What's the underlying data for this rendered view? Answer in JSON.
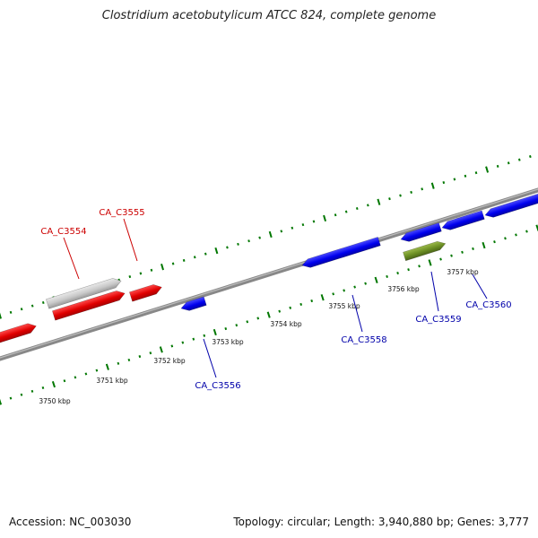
{
  "title": "Clostridium acetobutylicum ATCC 824, complete genome",
  "footer": {
    "accession": "Accession: NC_003030",
    "summary": "Topology: circular; Length: 3,940,880 bp; Genes: 3,777"
  },
  "colors": {
    "forward_cds": "#e00000",
    "reverse_cds": "#0000ee",
    "pseudo": "#c8c8c8",
    "other": "#6b8e23",
    "backbone": "#777777",
    "ticks": "#007700",
    "forward_label": "#cc0000",
    "reverse_label": "#0000aa"
  },
  "tick_labels": [
    "3750 kbp",
    "3751 kbp",
    "3752 kbp",
    "3753 kbp",
    "3754 kbp",
    "3755 kbp",
    "3756 kbp",
    "3757 kbp"
  ],
  "forward_genes": [
    {
      "label": "CA_C3554",
      "type": "pseudo"
    },
    {
      "label": "CA_C3555",
      "type": "cds"
    }
  ],
  "reverse_genes": [
    {
      "label": "CA_C3556"
    },
    {
      "label": "CA_C3558"
    },
    {
      "label": "CA_C3559"
    },
    {
      "label": "CA_C3560"
    }
  ]
}
